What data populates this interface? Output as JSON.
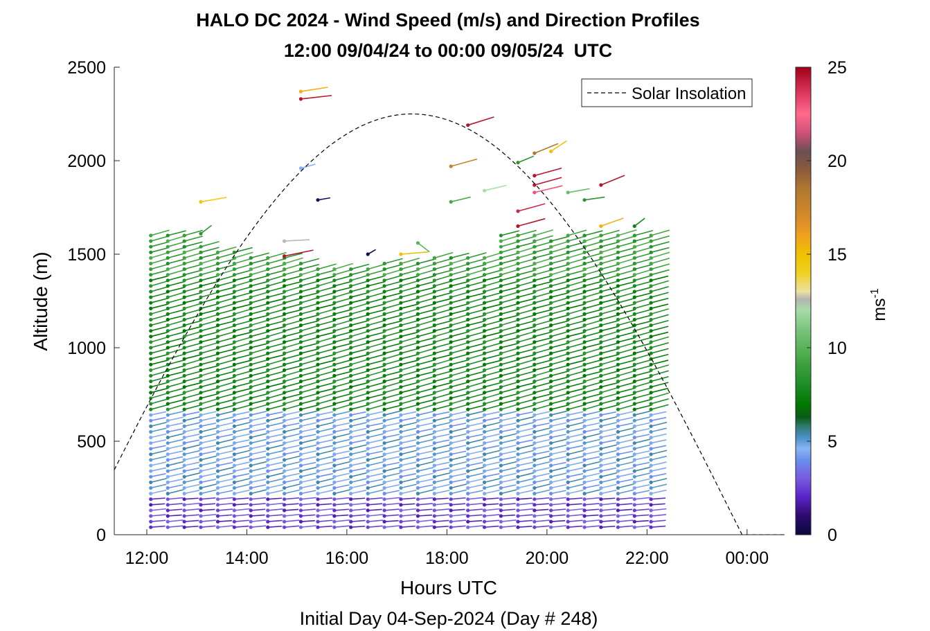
{
  "chart_data": {
    "type": "barb-profile",
    "title": "HALO DC 2024 - Wind Speed (m/s) and Direction Profiles",
    "subtitle": "12:00 09/04/24 to 00:00 09/05/24  UTC",
    "xlabel": "Hours UTC",
    "xlabel2": "Initial Day 04-Sep-2024 (Day # 248)",
    "ylabel": "Altitude (m)",
    "xlim": [
      11.35,
      24.75
    ],
    "ylim": [
      0,
      2500
    ],
    "xticks": [
      12,
      14,
      16,
      18,
      20,
      22,
      24
    ],
    "xtick_labels": [
      "12:00",
      "14:00",
      "16:00",
      "18:00",
      "20:00",
      "22:00",
      "00:00"
    ],
    "yticks": [
      0,
      500,
      1000,
      1500,
      2000,
      2500
    ],
    "ytick_labels": [
      "0",
      "500",
      "1000",
      "1500",
      "2000",
      "2500"
    ],
    "legend": {
      "label": "Solar Insolation",
      "placement": "top-right"
    },
    "colorbar": {
      "label": "ms",
      "label_superscript": "-1",
      "range": [
        0,
        25
      ],
      "ticks": [
        0,
        5,
        10,
        15,
        20,
        25
      ],
      "tick_labels": [
        "0",
        "5",
        "10",
        "15",
        "20",
        "25"
      ],
      "stops": [
        [
          0,
          "#0a0a3a"
        ],
        [
          1,
          "#2c0a6e"
        ],
        [
          2,
          "#5a22c8"
        ],
        [
          3,
          "#7a5ae0"
        ],
        [
          4,
          "#6a8ef0"
        ],
        [
          4.6,
          "#8ab4f2"
        ],
        [
          5.2,
          "#4a90c8"
        ],
        [
          5.8,
          "#2e7a6e"
        ],
        [
          6.3,
          "#0a5a14"
        ],
        [
          7,
          "#007a00"
        ],
        [
          8,
          "#1e8c28"
        ],
        [
          9,
          "#3a9e3a"
        ],
        [
          10,
          "#5ab45a"
        ],
        [
          11,
          "#7cc47c"
        ],
        [
          12,
          "#a8dca8"
        ],
        [
          12.6,
          "#b4b4b4"
        ],
        [
          13,
          "#ece0a0"
        ],
        [
          14,
          "#f0d020"
        ],
        [
          15,
          "#f0c000"
        ],
        [
          16,
          "#f0a020"
        ],
        [
          17,
          "#d48a28"
        ],
        [
          18.5,
          "#b0782e"
        ],
        [
          19.5,
          "#8c5a3c"
        ],
        [
          20.5,
          "#6a5050"
        ],
        [
          21.5,
          "#d2507a"
        ],
        [
          22.5,
          "#ff6a8c"
        ],
        [
          23.5,
          "#e03c64"
        ],
        [
          25,
          "#a00014"
        ]
      ]
    },
    "profile_times": [
      12.08,
      12.42,
      12.75,
      13.08,
      13.42,
      13.75,
      14.08,
      14.42,
      14.75,
      15.08,
      15.42,
      15.75,
      16.08,
      16.42,
      16.75,
      17.08,
      17.42,
      17.75,
      18.08,
      18.42,
      18.75,
      19.08,
      19.42,
      19.75,
      20.08,
      20.42,
      20.75,
      21.08,
      21.42,
      21.75,
      22.08
    ],
    "profile_top_altitudes": [
      1610,
      1610,
      1610,
      1540,
      1530,
      1530,
      1500,
      1490,
      1480,
      1470,
      1420,
      1420,
      1420,
      1420,
      1470,
      1470,
      1470,
      1480,
      1480,
      1480,
      1480,
      1620,
      1620,
      1620,
      1570,
      1600,
      1610,
      1610,
      1610,
      1610,
      1610
    ],
    "layer_spacing_m": 30,
    "layers": [
      {
        "alt_from": 0,
        "alt_to": 200,
        "speed": 2.4,
        "direction_deg": 210
      },
      {
        "alt_from": 200,
        "alt_to": 650,
        "speed": 4.6,
        "direction_deg": 255
      },
      {
        "alt_from": 650,
        "alt_to": 1380,
        "speed": 7.6,
        "direction_deg": 268
      },
      {
        "alt_from": 1380,
        "alt_to": 1620,
        "speed": 8.8,
        "direction_deg": 270
      }
    ],
    "sparse_barbs": [
      {
        "x": 15.08,
        "y": 2370,
        "speed": 15.5,
        "direction_deg": 235
      },
      {
        "x": 15.08,
        "y": 2330,
        "speed": 24.5,
        "direction_deg": 220
      },
      {
        "x": 18.42,
        "y": 2190,
        "speed": 24.5,
        "direction_deg": 280
      },
      {
        "x": 19.75,
        "y": 2040,
        "speed": 18.5,
        "direction_deg": 300
      },
      {
        "x": 20.08,
        "y": 2050,
        "speed": 15.0,
        "direction_deg": 340
      },
      {
        "x": 15.08,
        "y": 1960,
        "speed": 4.5,
        "direction_deg": 270
      },
      {
        "x": 18.08,
        "y": 1970,
        "speed": 17.5,
        "direction_deg": 270
      },
      {
        "x": 19.42,
        "y": 1990,
        "speed": 8.5,
        "direction_deg": 300
      },
      {
        "x": 19.75,
        "y": 1920,
        "speed": 24.5,
        "direction_deg": 270
      },
      {
        "x": 19.75,
        "y": 1870,
        "speed": 24.5,
        "direction_deg": 270
      },
      {
        "x": 19.75,
        "y": 1830,
        "speed": 23.0,
        "direction_deg": 260
      },
      {
        "x": 21.08,
        "y": 1870,
        "speed": 24.5,
        "direction_deg": 300
      },
      {
        "x": 13.08,
        "y": 1780,
        "speed": 14.5,
        "direction_deg": 240
      },
      {
        "x": 15.42,
        "y": 1790,
        "speed": 0.8,
        "direction_deg": 240
      },
      {
        "x": 18.08,
        "y": 1780,
        "speed": 9.5,
        "direction_deg": 260
      },
      {
        "x": 18.75,
        "y": 1840,
        "speed": 12.0,
        "direction_deg": 260
      },
      {
        "x": 20.42,
        "y": 1830,
        "speed": 10.5,
        "direction_deg": 240
      },
      {
        "x": 20.75,
        "y": 1790,
        "speed": 8.5,
        "direction_deg": 230
      },
      {
        "x": 21.08,
        "y": 1650,
        "speed": 15.5,
        "direction_deg": 290
      },
      {
        "x": 21.75,
        "y": 1650,
        "speed": 7.5,
        "direction_deg": 350
      },
      {
        "x": 19.42,
        "y": 1730,
        "speed": 24.0,
        "direction_deg": 270
      },
      {
        "x": 19.42,
        "y": 1650,
        "speed": 24.5,
        "direction_deg": 270
      },
      {
        "x": 13.08,
        "y": 1610,
        "speed": 8.5,
        "direction_deg": 350
      },
      {
        "x": 14.75,
        "y": 1570,
        "speed": 12.5,
        "direction_deg": 200
      },
      {
        "x": 14.75,
        "y": 1490,
        "speed": 24.5,
        "direction_deg": 250
      },
      {
        "x": 17.42,
        "y": 1560,
        "speed": 10.0,
        "direction_deg": 10
      },
      {
        "x": 17.08,
        "y": 1500,
        "speed": 15.0,
        "direction_deg": 210
      },
      {
        "x": 16.42,
        "y": 1500,
        "speed": 0.5,
        "direction_deg": 330
      }
    ],
    "solar_insolation": {
      "peak_x": 17.2,
      "peak_altitude": 2250,
      "rise_x": 10.7,
      "set_x": 23.9
    }
  }
}
